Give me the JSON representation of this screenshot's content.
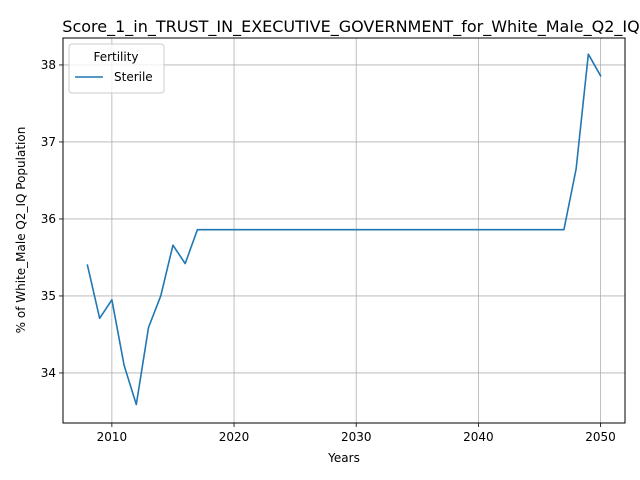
{
  "chart_data": {
    "type": "line",
    "title": "Score_1_in_TRUST_IN_EXECUTIVE_GOVERNMENT_for_White_Male_Q2_IQ",
    "xlabel": "Years",
    "ylabel": "% of White_Male Q2_IQ Population",
    "xlim": [
      2006,
      2052
    ],
    "ylim": [
      33.35,
      38.35
    ],
    "xticks": [
      2010,
      2020,
      2030,
      2040,
      2050
    ],
    "yticks": [
      34,
      35,
      36,
      37,
      38
    ],
    "grid": true,
    "legend": {
      "title": "Fertility",
      "placement": "top-left"
    },
    "colors": {
      "series": "#1f77b4",
      "grid": "#b0b0b0"
    },
    "series": [
      {
        "name": "Sterile",
        "x": [
          2008,
          2009,
          2010,
          2011,
          2012,
          2013,
          2014,
          2015,
          2016,
          2017,
          2018,
          2019,
          2020,
          2021,
          2022,
          2023,
          2024,
          2025,
          2026,
          2027,
          2028,
          2029,
          2030,
          2031,
          2032,
          2033,
          2034,
          2035,
          2036,
          2037,
          2038,
          2039,
          2040,
          2041,
          2042,
          2043,
          2044,
          2045,
          2046,
          2047,
          2048,
          2049,
          2050
        ],
        "values": [
          35.4,
          34.71,
          34.95,
          34.1,
          33.59,
          34.59,
          35.0,
          35.66,
          35.42,
          35.86,
          35.86,
          35.86,
          35.86,
          35.86,
          35.86,
          35.86,
          35.86,
          35.86,
          35.86,
          35.86,
          35.86,
          35.86,
          35.86,
          35.86,
          35.86,
          35.86,
          35.86,
          35.86,
          35.86,
          35.86,
          35.86,
          35.86,
          35.86,
          35.86,
          35.86,
          35.86,
          35.86,
          35.86,
          35.86,
          35.86,
          36.65,
          38.14,
          37.86
        ]
      }
    ]
  }
}
